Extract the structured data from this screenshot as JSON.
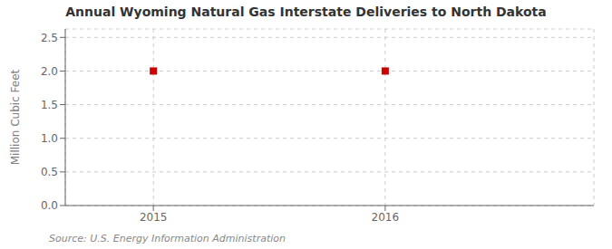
{
  "chart_data": {
    "type": "scatter",
    "title": "Annual Wyoming Natural Gas Interstate Deliveries to North Dakota",
    "ylabel": "Million Cubic Feet",
    "annotations": [
      "Source: U.S. Energy Information Administration"
    ],
    "x": [
      2015,
      2016
    ],
    "values": [
      2.0,
      2.0
    ],
    "color": "#cc0000",
    "marker": "square",
    "xlim": [
      2014.62,
      2016.9
    ],
    "ylim": [
      0.0,
      2.625
    ],
    "xticks": [
      2015,
      2016
    ],
    "yticks": [
      {
        "value": 0,
        "label": "0.0"
      },
      0.5,
      {
        "value": 1,
        "label": "1.0"
      },
      1.5,
      {
        "value": 2,
        "label": "2.0"
      },
      2.5
    ],
    "grid": true
  }
}
